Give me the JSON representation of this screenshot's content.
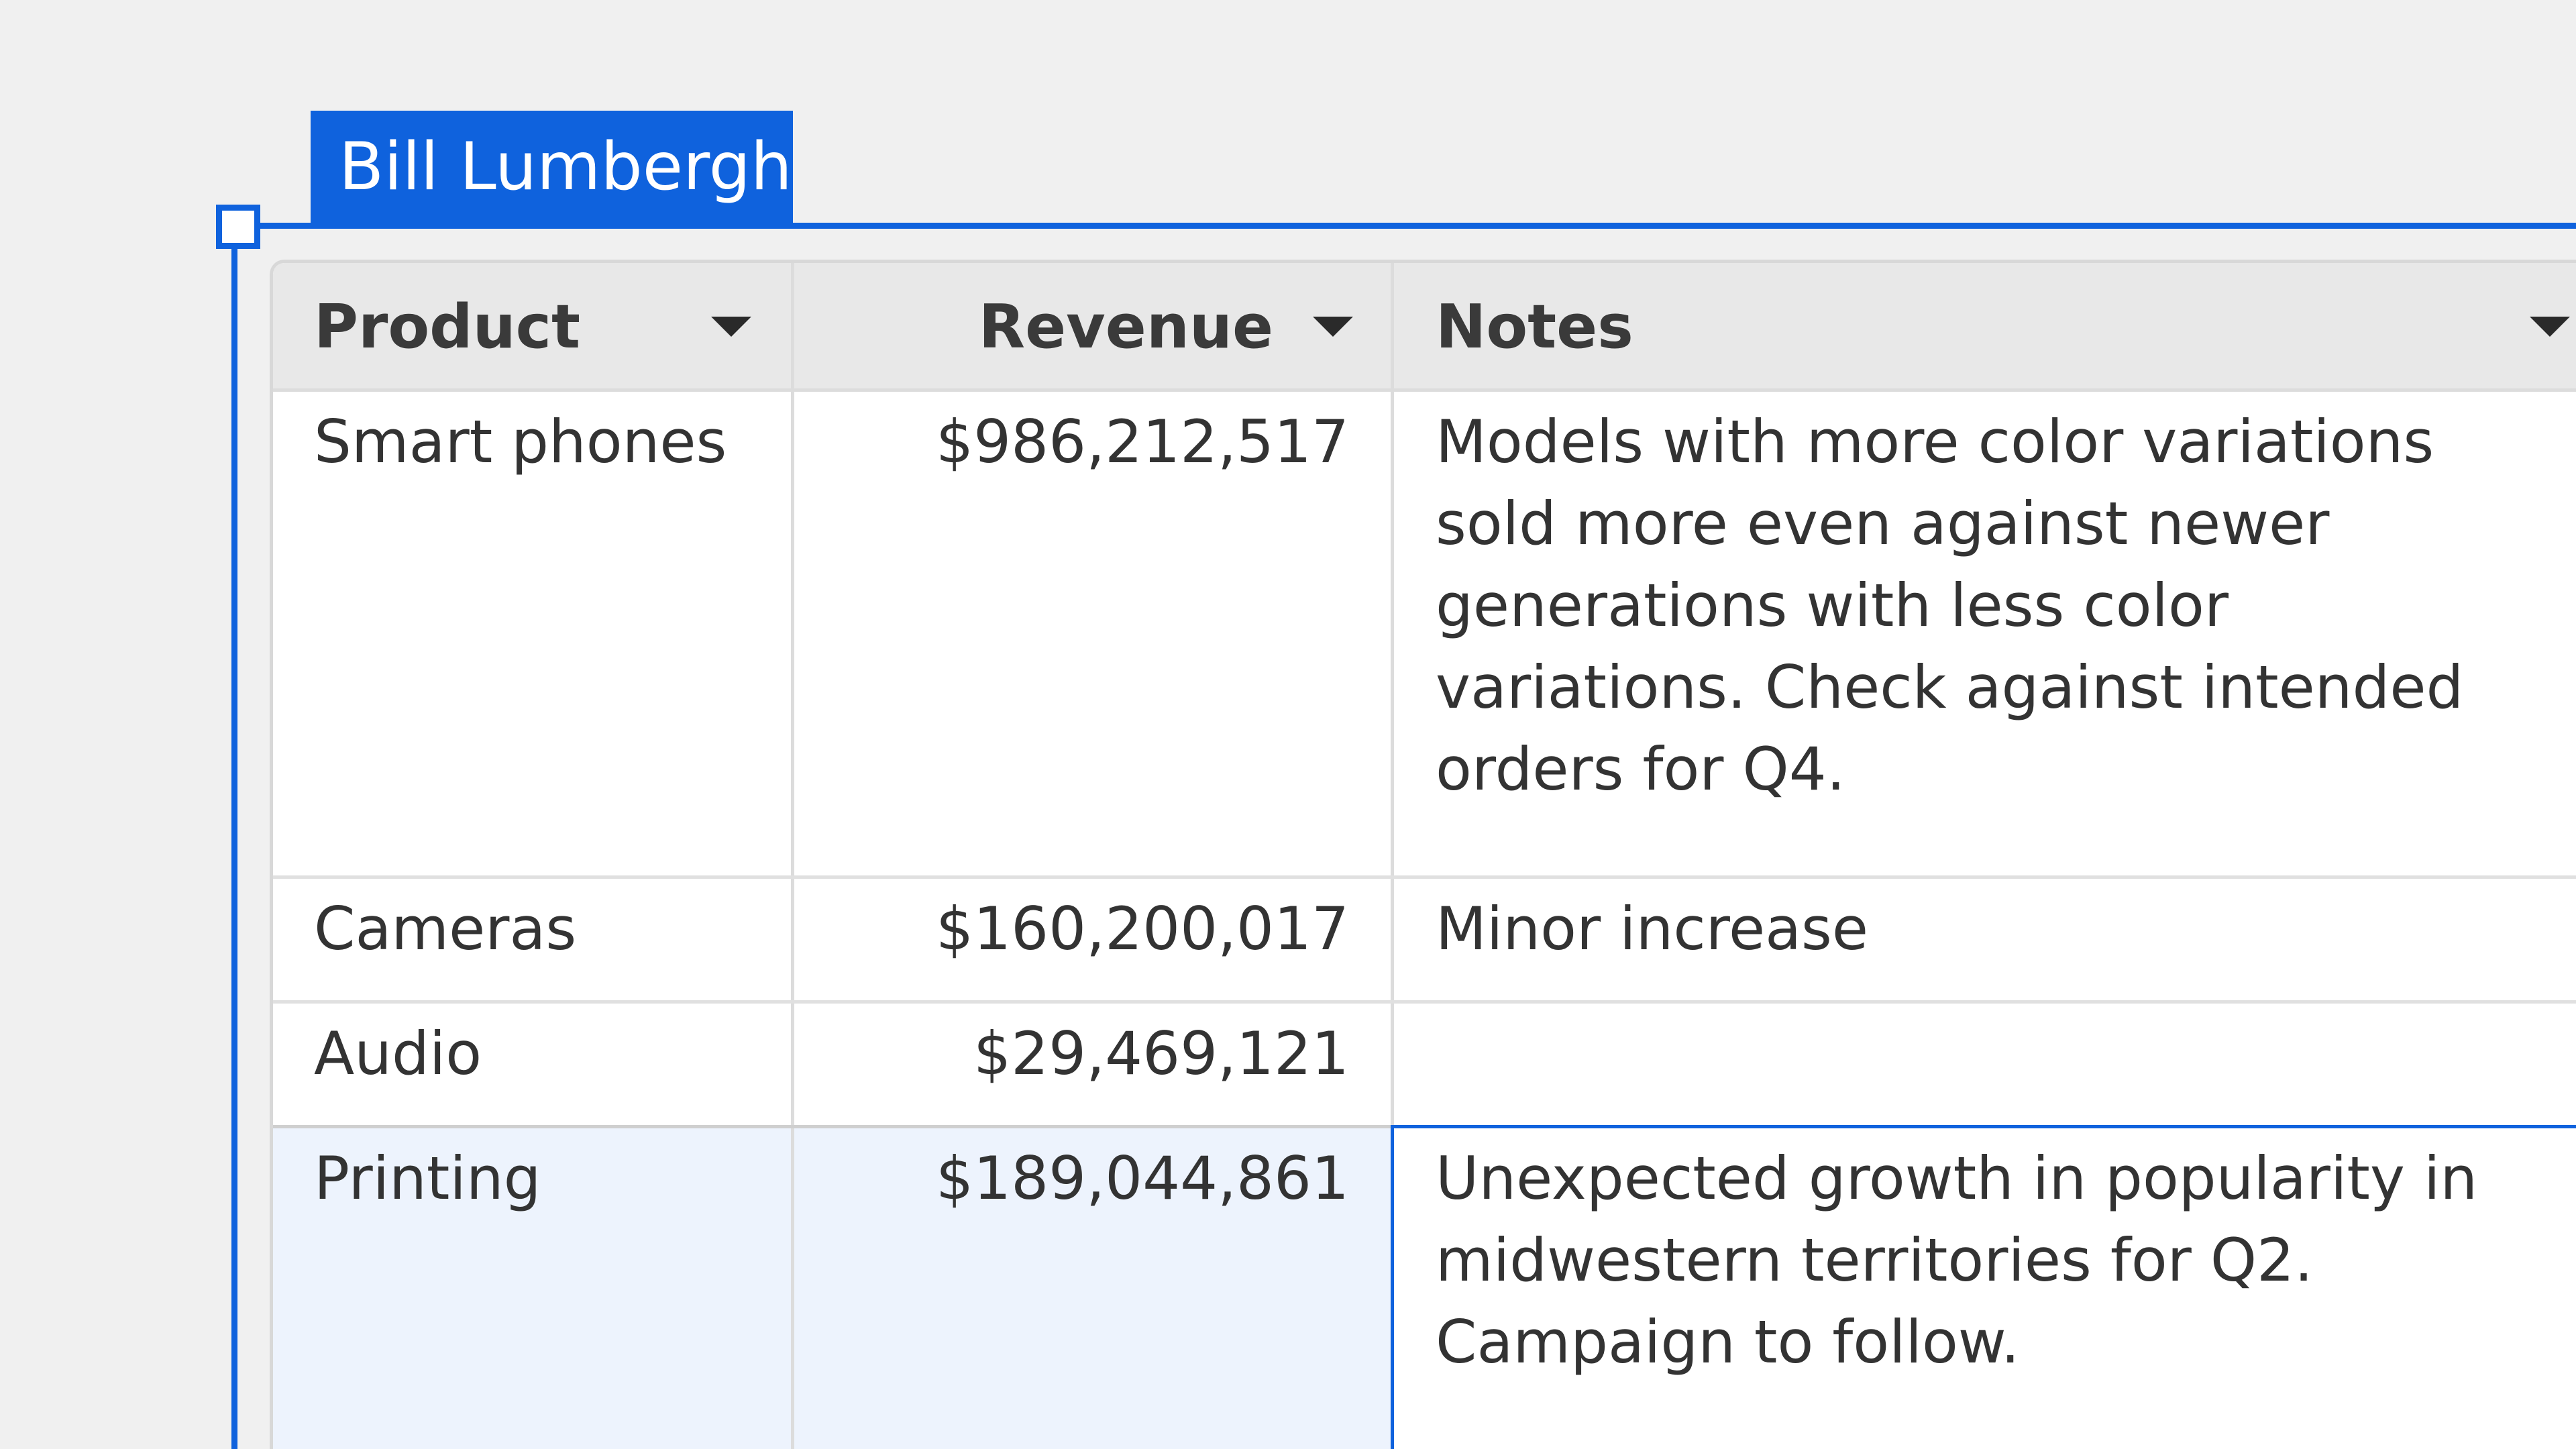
{
  "collaborator": {
    "name": "Bill Lumbergh",
    "color": "#0f62dd"
  },
  "table": {
    "columns": [
      {
        "label": "Product",
        "icon": "chevron-down-icon"
      },
      {
        "label": "Revenue",
        "icon": "chevron-down-icon"
      },
      {
        "label": "Notes",
        "icon": "chevron-down-icon"
      }
    ],
    "rows": [
      {
        "product": "Smart phones",
        "revenue": "$986,212,517",
        "notes": "Models with more color variations sold more even against newer generations with less color variations. Check against intended orders for Q4."
      },
      {
        "product": "Cameras",
        "revenue": "$160,200,017",
        "notes": "Minor increase"
      },
      {
        "product": "Audio",
        "revenue": "$29,469,121",
        "notes": ""
      },
      {
        "product": "Printing",
        "revenue": "$189,044,861",
        "notes": "Unexpected growth in popularity in midwestern territories for Q2. Campaign to follow."
      }
    ]
  }
}
